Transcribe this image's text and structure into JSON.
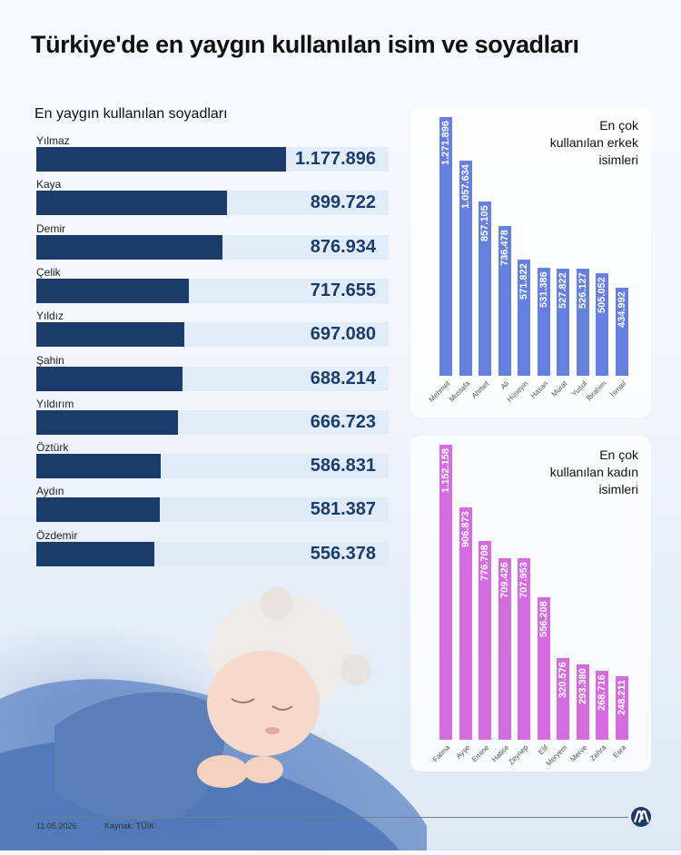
{
  "title": "Türkiye'de en yaygın kullanılan isim ve soyadları",
  "surnames": {
    "title": "En yaygın kullanılan soyadları",
    "items": [
      {
        "name": "Yılmaz",
        "value": 1177896,
        "label": "1.177.896"
      },
      {
        "name": "Kaya",
        "value": 899722,
        "label": "899.722"
      },
      {
        "name": "Demir",
        "value": 876934,
        "label": "876.934"
      },
      {
        "name": "Çelik",
        "value": 717655,
        "label": "717.655"
      },
      {
        "name": "Yıldız",
        "value": 697080,
        "label": "697.080"
      },
      {
        "name": "Şahin",
        "value": 688214,
        "label": "688.214"
      },
      {
        "name": "Yıldırım",
        "value": 666723,
        "label": "666.723"
      },
      {
        "name": "Öztürk",
        "value": 586831,
        "label": "586.831"
      },
      {
        "name": "Aydın",
        "value": 581387,
        "label": "581.387"
      },
      {
        "name": "Özdemir",
        "value": 556378,
        "label": "556.378"
      }
    ]
  },
  "male": {
    "title_line1": "En çok",
    "title_line2": "kullanılan erkek",
    "title_line3": "isimleri",
    "color": "#6680e0",
    "items": [
      {
        "name": "Mehmet",
        "value": 1271896,
        "label": "1.271.896"
      },
      {
        "name": "Mustafa",
        "value": 1057634,
        "label": "1.057.634"
      },
      {
        "name": "Ahmet",
        "value": 857105,
        "label": "857.105"
      },
      {
        "name": "Ali",
        "value": 736478,
        "label": "736.478"
      },
      {
        "name": "Hüseyin",
        "value": 571822,
        "label": "571.822"
      },
      {
        "name": "Hasan",
        "value": 531386,
        "label": "531.386"
      },
      {
        "name": "Murat",
        "value": 527822,
        "label": "527.822"
      },
      {
        "name": "Yusuf",
        "value": 526127,
        "label": "526.127"
      },
      {
        "name": "İbrahim",
        "value": 505052,
        "label": "505.052"
      },
      {
        "name": "İsmail",
        "value": 434992,
        "label": "434.992"
      }
    ]
  },
  "female": {
    "title_line1": "En çok",
    "title_line2": "kullanılan kadın",
    "title_line3": "isimleri",
    "color": "#d46ce0",
    "items": [
      {
        "name": "Fatma",
        "value": 1152158,
        "label": "1.152.158"
      },
      {
        "name": "Ayşe",
        "value": 906873,
        "label": "906.873"
      },
      {
        "name": "Emine",
        "value": 776708,
        "label": "776.708"
      },
      {
        "name": "Hatice",
        "value": 709426,
        "label": "709.426"
      },
      {
        "name": "Zeynep",
        "value": 707953,
        "label": "707.953"
      },
      {
        "name": "Elif",
        "value": 556208,
        "label": "556.208"
      },
      {
        "name": "Meryem",
        "value": 320576,
        "label": "320.576"
      },
      {
        "name": "Merve",
        "value": 293380,
        "label": "293.380"
      },
      {
        "name": "Zehra",
        "value": 268716,
        "label": "268.716"
      },
      {
        "name": "Esra",
        "value": 248211,
        "label": "248.211"
      }
    ]
  },
  "chart_data": [
    {
      "type": "bar",
      "title": "En yaygın kullanılan soyadları",
      "categories": [
        "Yılmaz",
        "Kaya",
        "Demir",
        "Çelik",
        "Yıldız",
        "Şahin",
        "Yıldırım",
        "Öztürk",
        "Aydın",
        "Özdemir"
      ],
      "values": [
        1177896,
        899722,
        876934,
        717655,
        697080,
        688214,
        666723,
        586831,
        581387,
        556378
      ]
    },
    {
      "type": "bar",
      "title": "En çok kullanılan erkek isimleri",
      "categories": [
        "Mehmet",
        "Mustafa",
        "Ahmet",
        "Ali",
        "Hüseyin",
        "Hasan",
        "Murat",
        "Yusuf",
        "İbrahim",
        "İsmail"
      ],
      "values": [
        1271896,
        1057634,
        857105,
        736478,
        571822,
        531386,
        527822,
        526127,
        505052,
        434992
      ]
    },
    {
      "type": "bar",
      "title": "En çok kullanılan kadın isimleri",
      "categories": [
        "Fatma",
        "Ayşe",
        "Emine",
        "Hatice",
        "Zeynep",
        "Elif",
        "Meryem",
        "Merve",
        "Zehra",
        "Esra"
      ],
      "values": [
        1152158,
        906873,
        776708,
        709426,
        707953,
        556208,
        320576,
        293380,
        268716,
        248211
      ]
    }
  ],
  "footer": {
    "date": "11.05.2026",
    "source": "Kaynak: TÜİK",
    "logo": "aa-logo"
  },
  "background_image": "sleeping-baby-photo"
}
